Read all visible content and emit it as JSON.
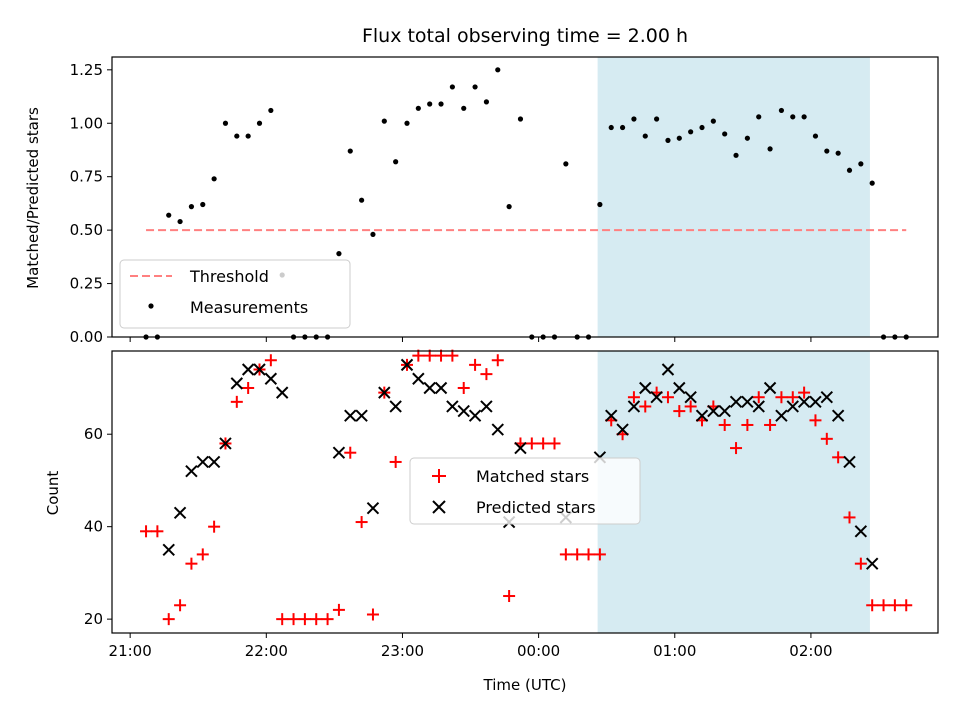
{
  "chart_data": [
    {
      "type": "scatter",
      "title": "Flux total observing time = 2.00 h",
      "ylabel": "Matched/Predicted stars",
      "xlim": [
        "20:52",
        "02:56"
      ],
      "ylim": [
        0,
        1.31
      ],
      "yticks": [
        "0.00",
        "0.25",
        "0.50",
        "0.75",
        "1.00",
        "1.25"
      ],
      "highlight_span": [
        "00:26",
        "02:26"
      ],
      "highlight_color": "#add8e6",
      "threshold": {
        "name": "Threshold",
        "value": 0.5,
        "x": [
          "21:07",
          "02:42"
        ],
        "color": "#ff8080"
      },
      "legend_position": "lower left",
      "series": [
        {
          "name": "Measurements",
          "color": "#000000",
          "points": [
            [
              "21:07",
              0.0
            ],
            [
              "21:12",
              0.0
            ],
            [
              "21:17",
              0.57
            ],
            [
              "21:22",
              0.54
            ],
            [
              "21:27",
              0.61
            ],
            [
              "21:32",
              0.62
            ],
            [
              "21:37",
              0.74
            ],
            [
              "21:42",
              1.0
            ],
            [
              "21:47",
              0.94
            ],
            [
              "21:52",
              0.94
            ],
            [
              "21:57",
              1.0
            ],
            [
              "22:02",
              1.06
            ],
            [
              "22:07",
              0.29
            ],
            [
              "22:12",
              0.0
            ],
            [
              "22:17",
              0.0
            ],
            [
              "22:22",
              0.0
            ],
            [
              "22:27",
              0.0
            ],
            [
              "22:32",
              0.39
            ],
            [
              "22:37",
              0.87
            ],
            [
              "22:42",
              0.64
            ],
            [
              "22:47",
              0.48
            ],
            [
              "22:52",
              1.01
            ],
            [
              "22:57",
              0.82
            ],
            [
              "23:02",
              1.0
            ],
            [
              "23:07",
              1.07
            ],
            [
              "23:12",
              1.09
            ],
            [
              "23:17",
              1.09
            ],
            [
              "23:22",
              1.17
            ],
            [
              "23:27",
              1.07
            ],
            [
              "23:32",
              1.17
            ],
            [
              "23:37",
              1.1
            ],
            [
              "23:42",
              1.25
            ],
            [
              "23:47",
              0.61
            ],
            [
              "23:52",
              1.02
            ],
            [
              "23:57",
              0.0
            ],
            [
              "00:02",
              0.0
            ],
            [
              "00:07",
              0.0
            ],
            [
              "00:12",
              0.81
            ],
            [
              "00:17",
              0.0
            ],
            [
              "00:22",
              0.0
            ],
            [
              "00:27",
              0.62
            ],
            [
              "00:32",
              0.98
            ],
            [
              "00:37",
              0.98
            ],
            [
              "00:42",
              1.02
            ],
            [
              "00:47",
              0.94
            ],
            [
              "00:52",
              1.02
            ],
            [
              "00:57",
              0.92
            ],
            [
              "01:02",
              0.93
            ],
            [
              "01:07",
              0.96
            ],
            [
              "01:12",
              0.98
            ],
            [
              "01:17",
              1.01
            ],
            [
              "01:22",
              0.95
            ],
            [
              "01:27",
              0.85
            ],
            [
              "01:32",
              0.93
            ],
            [
              "01:37",
              1.03
            ],
            [
              "01:42",
              0.88
            ],
            [
              "01:47",
              1.06
            ],
            [
              "01:52",
              1.03
            ],
            [
              "01:57",
              1.03
            ],
            [
              "02:02",
              0.94
            ],
            [
              "02:07",
              0.87
            ],
            [
              "02:12",
              0.86
            ],
            [
              "02:17",
              0.78
            ],
            [
              "02:22",
              0.81
            ],
            [
              "02:27",
              0.72
            ],
            [
              "02:32",
              0.0
            ],
            [
              "02:37",
              0.0
            ],
            [
              "02:42",
              0.0
            ]
          ]
        }
      ]
    },
    {
      "type": "scatter",
      "title": "",
      "xlabel": "Time (UTC)",
      "ylabel": "Count",
      "xticks": [
        "21:00",
        "22:00",
        "23:00",
        "00:00",
        "01:00",
        "02:00"
      ],
      "xlim": [
        "20:52",
        "02:56"
      ],
      "ylim": [
        17,
        78
      ],
      "yticks": [
        "20",
        "40",
        "60"
      ],
      "highlight_span": [
        "00:26",
        "02:26"
      ],
      "highlight_color": "#add8e6",
      "legend_position": "center",
      "series": [
        {
          "name": "Matched stars",
          "color": "#ff0000",
          "marker": "+",
          "points": [
            [
              "21:07",
              39
            ],
            [
              "21:12",
              39
            ],
            [
              "21:17",
              20
            ],
            [
              "21:22",
              23
            ],
            [
              "21:27",
              32
            ],
            [
              "21:32",
              34
            ],
            [
              "21:37",
              40
            ],
            [
              "21:42",
              58
            ],
            [
              "21:47",
              67
            ],
            [
              "21:52",
              70
            ],
            [
              "21:57",
              74
            ],
            [
              "22:02",
              76
            ],
            [
              "22:07",
              20
            ],
            [
              "22:12",
              20
            ],
            [
              "22:17",
              20
            ],
            [
              "22:22",
              20
            ],
            [
              "22:27",
              20
            ],
            [
              "22:32",
              22
            ],
            [
              "22:37",
              56
            ],
            [
              "22:42",
              41
            ],
            [
              "22:47",
              21
            ],
            [
              "22:52",
              69
            ],
            [
              "22:57",
              54
            ],
            [
              "23:02",
              75
            ],
            [
              "23:07",
              77
            ],
            [
              "23:12",
              77
            ],
            [
              "23:17",
              77
            ],
            [
              "23:22",
              77
            ],
            [
              "23:27",
              70
            ],
            [
              "23:32",
              75
            ],
            [
              "23:37",
              73
            ],
            [
              "23:42",
              76
            ],
            [
              "23:47",
              25
            ],
            [
              "23:52",
              58
            ],
            [
              "23:57",
              58
            ],
            [
              "00:02",
              58
            ],
            [
              "00:07",
              58
            ],
            [
              "00:12",
              34
            ],
            [
              "00:17",
              34
            ],
            [
              "00:22",
              34
            ],
            [
              "00:27",
              34
            ],
            [
              "00:32",
              63
            ],
            [
              "00:37",
              60
            ],
            [
              "00:42",
              68
            ],
            [
              "00:47",
              66
            ],
            [
              "00:52",
              69
            ],
            [
              "00:57",
              68
            ],
            [
              "01:02",
              65
            ],
            [
              "01:07",
              66
            ],
            [
              "01:12",
              63
            ],
            [
              "01:17",
              66
            ],
            [
              "01:22",
              62
            ],
            [
              "01:27",
              57
            ],
            [
              "01:32",
              62
            ],
            [
              "01:37",
              68
            ],
            [
              "01:42",
              62
            ],
            [
              "01:47",
              68
            ],
            [
              "01:52",
              68
            ],
            [
              "01:57",
              69
            ],
            [
              "02:02",
              63
            ],
            [
              "02:07",
              59
            ],
            [
              "02:12",
              55
            ],
            [
              "02:17",
              42
            ],
            [
              "02:22",
              32
            ],
            [
              "02:27",
              23
            ],
            [
              "02:32",
              23
            ],
            [
              "02:37",
              23
            ],
            [
              "02:42",
              23
            ]
          ]
        },
        {
          "name": "Predicted stars",
          "color": "#000000",
          "marker": "x",
          "points": [
            [
              "21:17",
              35
            ],
            [
              "21:22",
              43
            ],
            [
              "21:27",
              52
            ],
            [
              "21:32",
              54
            ],
            [
              "21:37",
              54
            ],
            [
              "21:42",
              58
            ],
            [
              "21:47",
              71
            ],
            [
              "21:52",
              74
            ],
            [
              "21:57",
              74
            ],
            [
              "22:02",
              72
            ],
            [
              "22:07",
              69
            ],
            [
              "22:32",
              56
            ],
            [
              "22:37",
              64
            ],
            [
              "22:42",
              64
            ],
            [
              "22:47",
              44
            ],
            [
              "22:52",
              69
            ],
            [
              "22:57",
              66
            ],
            [
              "23:02",
              75
            ],
            [
              "23:07",
              72
            ],
            [
              "23:12",
              70
            ],
            [
              "23:17",
              70
            ],
            [
              "23:22",
              66
            ],
            [
              "23:27",
              65
            ],
            [
              "23:32",
              64
            ],
            [
              "23:37",
              66
            ],
            [
              "23:42",
              61
            ],
            [
              "23:47",
              41
            ],
            [
              "23:52",
              57
            ],
            [
              "00:12",
              42
            ],
            [
              "00:27",
              55
            ],
            [
              "00:32",
              64
            ],
            [
              "00:37",
              61
            ],
            [
              "00:42",
              66
            ],
            [
              "00:47",
              70
            ],
            [
              "00:52",
              68
            ],
            [
              "00:57",
              74
            ],
            [
              "01:02",
              70
            ],
            [
              "01:07",
              68
            ],
            [
              "01:12",
              64
            ],
            [
              "01:17",
              65
            ],
            [
              "01:22",
              65
            ],
            [
              "01:27",
              67
            ],
            [
              "01:32",
              67
            ],
            [
              "01:37",
              66
            ],
            [
              "01:42",
              70
            ],
            [
              "01:47",
              64
            ],
            [
              "01:52",
              66
            ],
            [
              "01:57",
              67
            ],
            [
              "02:02",
              67
            ],
            [
              "02:07",
              68
            ],
            [
              "02:12",
              64
            ],
            [
              "02:17",
              54
            ],
            [
              "02:22",
              39
            ],
            [
              "02:27",
              32
            ]
          ]
        }
      ]
    }
  ]
}
